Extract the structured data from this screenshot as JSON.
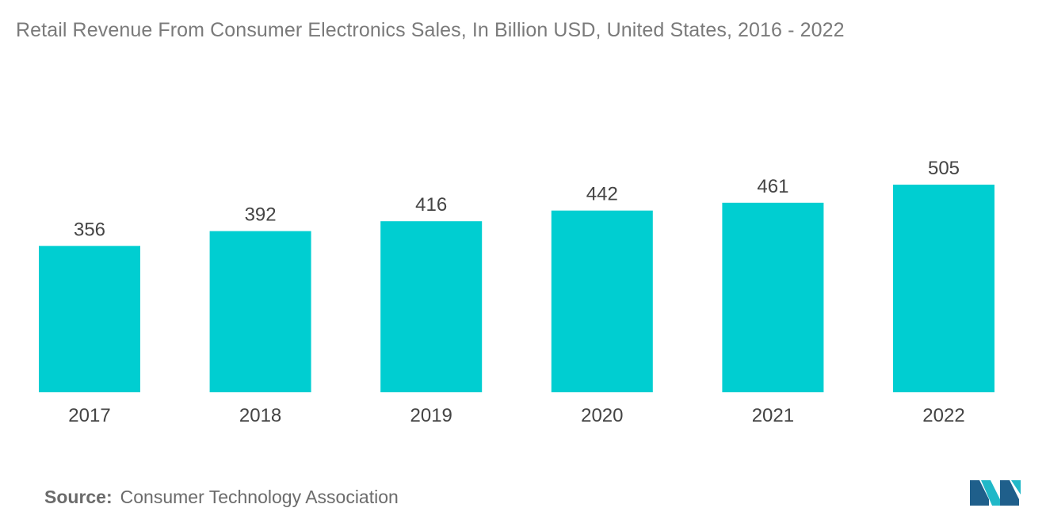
{
  "chart_data": {
    "type": "bar",
    "title": "Retail Revenue From Consumer Electronics Sales, In Billion USD, United States, 2016 - 2022",
    "categories": [
      "2017",
      "2018",
      "2019",
      "2020",
      "2021",
      "2022"
    ],
    "values": [
      356,
      392,
      416,
      442,
      461,
      505
    ],
    "data_labels": [
      "356",
      "392",
      "416",
      "442",
      "461",
      "505"
    ],
    "xlabel": "",
    "ylabel": "",
    "ylim": [
      0,
      505
    ],
    "grid": false,
    "legend": "none",
    "bar_color": "#00ced1"
  },
  "source": {
    "label": "Source:",
    "text": "Consumer Technology Association"
  },
  "colors": {
    "bar": "#00ced1",
    "logo_dark": "#1f5f8b",
    "logo_light": "#20b8c8"
  }
}
